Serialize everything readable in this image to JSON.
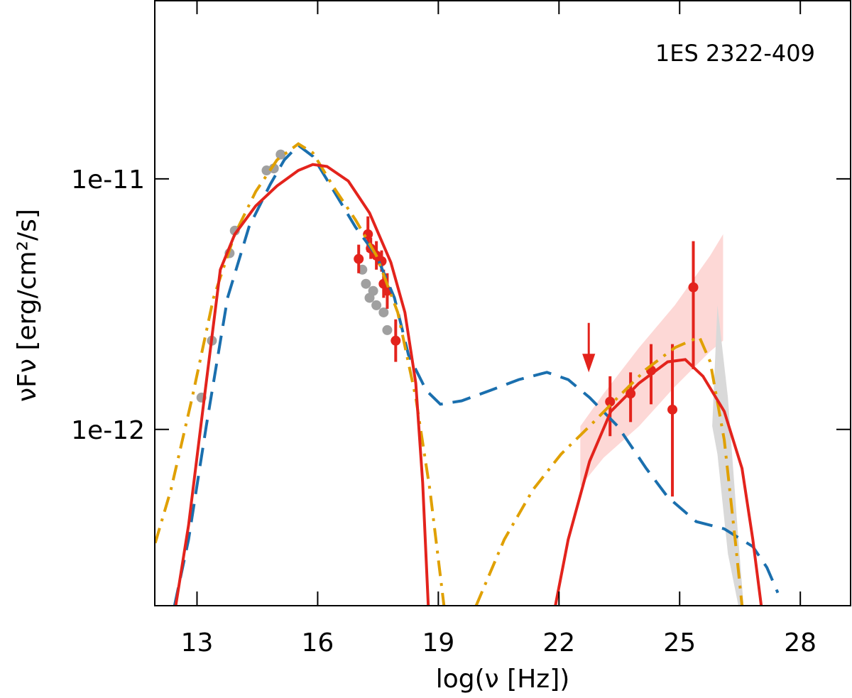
{
  "chart_data": {
    "type": "line",
    "annotation": "1ES 2322-409",
    "xlabel": "log(ν [Hz])",
    "ylabel": "νFν [erg/cm²/s]",
    "xlim": [
      11.95,
      29.25
    ],
    "ylim": [
      1.98e-13,
      5.17e-11
    ],
    "ylog": true,
    "xticks": [
      13,
      16,
      19,
      22,
      25,
      28
    ],
    "yticks": [
      {
        "value": 1e-11,
        "label": "1e-11"
      },
      {
        "value": 1e-12,
        "label": "1e-12"
      }
    ],
    "bands": [
      {
        "color": "#fdd8d6",
        "x": [
          22.53,
          23.11,
          23.99,
          24.88,
          25.76,
          26.08
        ],
        "upper": [
          1.03e-12,
          1.39e-12,
          2.12e-12,
          3.13e-12,
          4.94e-12,
          6.01e-12
        ],
        "lower": [
          5.93e-13,
          7.71e-13,
          1.03e-12,
          1.48e-12,
          2.05e-12,
          2.26e-12
        ]
      },
      {
        "color": "#d9d9d9",
        "x": [
          25.81,
          25.94,
          26.2,
          26.46,
          26.59
        ],
        "upper": [
          1.03e-12,
          3.13e-12,
          1.34e-12,
          3.64e-13,
          1.98e-13
        ],
        "lower": [
          1.03e-12,
          7.96e-13,
          3.19e-13,
          1.98e-13,
          1.98e-13
        ]
      }
    ],
    "points": [
      {
        "color": "#a0a0a0",
        "x": [
          13.11,
          13.37,
          13.81,
          13.94,
          14.73,
          14.91,
          15.08,
          17.11,
          17.2,
          17.29,
          17.38,
          17.46,
          17.64,
          17.73
        ],
        "values": [
          1.34e-12,
          2.26e-12,
          5.05e-12,
          6.21e-12,
          1.08e-11,
          1.1e-11,
          1.25e-11,
          4.34e-12,
          3.81e-12,
          3.35e-12,
          3.57e-12,
          3.13e-12,
          2.93e-12,
          2.49e-12
        ]
      },
      {
        "color": "#e3231c",
        "x": [
          17.02,
          17.25,
          17.32,
          17.46,
          17.59,
          17.64,
          17.73,
          17.94,
          23.27,
          23.78,
          24.29,
          24.82,
          25.34
        ],
        "values": [
          4.79e-12,
          6.01e-12,
          5.27e-12,
          4.94e-12,
          4.69e-12,
          3.81e-12,
          3.57e-12,
          2.26e-12,
          1.29e-12,
          1.39e-12,
          1.72e-12,
          1.2e-12,
          3.69e-12
        ],
        "yerr_minus": [
          5.9e-13,
          9e-13,
          4.8e-13,
          6e-13,
          4.3e-13,
          4.6e-13,
          5.4e-13,
          4e-13,
          3.5e-13,
          3.2e-13,
          4.6e-13,
          6.6e-13,
          1.95e-12
        ],
        "yerr_plus": [
          6.7e-13,
          1.07e-12,
          5.5e-13,
          7e-13,
          4.9e-13,
          5.3e-13,
          6.3e-13,
          4.9e-13,
          3.4e-13,
          3e-13,
          4.7e-13,
          9.9e-13,
          1.95e-12
        ]
      }
    ],
    "upper_limits": {
      "color": "#e3231c",
      "x": [
        22.74
      ],
      "values": [
        2.66e-12
      ]
    },
    "lines": [
      {
        "color": "#1a6fae",
        "dash": "dashed",
        "x": [
          12.44,
          12.79,
          13.23,
          13.76,
          14.29,
          14.82,
          15.17,
          15.52,
          15.88,
          16.41,
          16.94,
          17.46,
          17.91,
          18.26,
          18.7,
          19.05,
          19.58,
          20.29,
          21.0,
          21.7,
          22.23,
          22.76,
          23.46,
          24.17,
          24.7,
          25.41,
          26.11,
          26.82,
          27.17,
          27.44
        ],
        "values": [
          1.98e-13,
          3.64e-13,
          1.03e-12,
          3.35e-12,
          6.42e-12,
          9.5e-12,
          1.19e-11,
          1.36e-11,
          1.23e-11,
          8.9e-12,
          6.42e-12,
          4.94e-12,
          3.35e-12,
          1.98e-12,
          1.43e-12,
          1.26e-12,
          1.3e-12,
          1.43e-12,
          1.58e-12,
          1.69e-12,
          1.58e-12,
          1.34e-12,
          1.03e-12,
          6.99e-13,
          5.38e-13,
          4.29e-13,
          4.01e-13,
          3.41e-13,
          2.81e-13,
          2.23e-13
        ]
      },
      {
        "color": "#e0a000",
        "dash": "dashdot",
        "x": [
          11.96,
          12.35,
          12.88,
          13.41,
          13.94,
          14.46,
          14.99,
          15.52,
          15.88,
          16.41,
          16.94,
          17.46,
          17.99,
          18.44,
          18.79,
          19.14,
          null,
          19.94,
          20.64,
          21.35,
          22.05,
          22.76,
          23.46,
          24.17,
          24.88,
          25.49,
          25.76,
          26.11,
          26.38,
          26.55
        ],
        "values": [
          3.52e-13,
          5.74e-13,
          1.34e-12,
          3.35e-12,
          6.01e-12,
          8.9e-12,
          1.19e-11,
          1.38e-11,
          1.27e-11,
          9.2e-12,
          6.86e-12,
          4.94e-12,
          2.93e-12,
          1.34e-12,
          5.74e-13,
          1.98e-13,
          null,
          1.98e-13,
          3.64e-13,
          5.74e-13,
          7.96e-13,
          1.03e-12,
          1.34e-12,
          1.74e-12,
          2.12e-12,
          2.34e-12,
          1.86e-12,
          9.08e-13,
          3.64e-13,
          1.98e-13
        ]
      },
      {
        "color": "#e3231c",
        "dash": "solid",
        "x": [
          12.47,
          12.79,
          13.14,
          13.58,
          13.94,
          14.46,
          14.99,
          15.52,
          15.88,
          16.23,
          16.76,
          17.29,
          17.82,
          18.17,
          18.44,
          18.61,
          18.75,
          null,
          21.91,
          22.23,
          22.76,
          23.29,
          23.99,
          24.7,
          25.14,
          25.58,
          26.11,
          26.55,
          26.82,
          27.03
        ],
        "values": [
          1.98e-13,
          4.15e-13,
          1.18e-12,
          4.34e-12,
          6.01e-12,
          7.8e-12,
          9.37e-12,
          1.08e-11,
          1.14e-11,
          1.12e-11,
          9.8e-12,
          7.31e-12,
          4.64e-12,
          2.93e-12,
          1.53e-12,
          6.14e-13,
          1.98e-13,
          null,
          1.98e-13,
          3.64e-13,
          7.46e-13,
          1.18e-12,
          1.53e-12,
          1.86e-12,
          1.9e-12,
          1.63e-12,
          1.18e-12,
          6.99e-13,
          3.64e-13,
          1.98e-13
        ]
      }
    ]
  }
}
